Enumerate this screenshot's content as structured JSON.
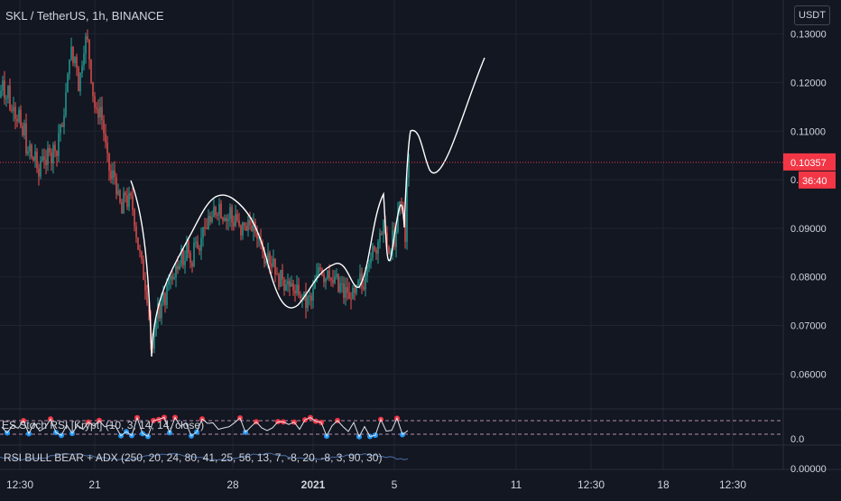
{
  "header": {
    "title": "SKL / TetherUS, 1h, BINANCE",
    "currency_button": "USDT"
  },
  "price_scale": {
    "ticks": [
      "0.06000",
      "0.07000",
      "0.08000",
      "0.09000",
      "0.10000",
      "0.11000",
      "0.12000",
      "0.13000"
    ],
    "last_price": "0.10357",
    "countdown": "36:40",
    "last_price_color": "#f23645"
  },
  "indicators": [
    {
      "label": "ES Stoch RSI [Krypt] (10, 3, 14, 14, close)",
      "scale_label": "0.0"
    },
    {
      "label": "RSI BULL BEAR + ADX (250, 20, 24, 80, 41, 25, 56, 13, 7, -8, 20, -8, 3, 90, 30)",
      "scale_label": "0.00000"
    }
  ],
  "time_axis": [
    "12:30",
    "21",
    "28",
    "2021",
    "5",
    "11",
    "12:30",
    "18",
    "12:30"
  ],
  "colors": {
    "background": "#131722",
    "up": "#26a69a",
    "down": "#ef5350",
    "drawing": "#ffffff",
    "text": "#d1d4dc"
  },
  "chart_data": {
    "type": "candlestick",
    "symbol": "SKL / TetherUS",
    "interval": "1h",
    "exchange": "BINANCE",
    "ylim": [
      0.053,
      0.137
    ],
    "close_path": [
      [
        0,
        0.117
      ],
      [
        3,
        0.121
      ],
      [
        6,
        0.116
      ],
      [
        9,
        0.119
      ],
      [
        12,
        0.113
      ],
      [
        15,
        0.116
      ],
      [
        18,
        0.112
      ],
      [
        21,
        0.114
      ],
      [
        24,
        0.108
      ],
      [
        27,
        0.111
      ],
      [
        30,
        0.104
      ],
      [
        33,
        0.107
      ],
      [
        36,
        0.103
      ],
      [
        39,
        0.106
      ],
      [
        42,
        0.099
      ],
      [
        45,
        0.104
      ],
      [
        48,
        0.106
      ],
      [
        51,
        0.102
      ],
      [
        54,
        0.108
      ],
      [
        57,
        0.104
      ],
      [
        60,
        0.108
      ],
      [
        63,
        0.105
      ],
      [
        66,
        0.112
      ],
      [
        69,
        0.11
      ],
      [
        72,
        0.116
      ],
      [
        75,
        0.121
      ],
      [
        78,
        0.128
      ],
      [
        81,
        0.124
      ],
      [
        84,
        0.126
      ],
      [
        87,
        0.119
      ],
      [
        90,
        0.123
      ],
      [
        93,
        0.127
      ],
      [
        96,
        0.13
      ],
      [
        99,
        0.125
      ],
      [
        102,
        0.119
      ],
      [
        105,
        0.115
      ],
      [
        108,
        0.113
      ],
      [
        111,
        0.115
      ],
      [
        114,
        0.111
      ],
      [
        117,
        0.107
      ],
      [
        120,
        0.103
      ],
      [
        123,
        0.1
      ],
      [
        126,
        0.102
      ],
      [
        129,
        0.098
      ],
      [
        132,
        0.096
      ],
      [
        135,
        0.093
      ],
      [
        138,
        0.098
      ],
      [
        141,
        0.095
      ],
      [
        144,
        0.097
      ],
      [
        147,
        0.094
      ],
      [
        150,
        0.09
      ],
      [
        153,
        0.086
      ],
      [
        156,
        0.084
      ],
      [
        159,
        0.08
      ],
      [
        162,
        0.077
      ],
      [
        165,
        0.073
      ],
      [
        168,
        0.063
      ],
      [
        171,
        0.067
      ],
      [
        174,
        0.075
      ],
      [
        177,
        0.072
      ],
      [
        180,
        0.077
      ],
      [
        183,
        0.074
      ],
      [
        186,
        0.079
      ],
      [
        189,
        0.081
      ],
      [
        192,
        0.078
      ],
      [
        195,
        0.083
      ],
      [
        198,
        0.08
      ],
      [
        201,
        0.085
      ],
      [
        204,
        0.082
      ],
      [
        207,
        0.087
      ],
      [
        210,
        0.084
      ],
      [
        213,
        0.082
      ],
      [
        216,
        0.089
      ],
      [
        219,
        0.087
      ],
      [
        222,
        0.086
      ],
      [
        225,
        0.091
      ],
      [
        228,
        0.088
      ],
      [
        231,
        0.093
      ],
      [
        234,
        0.09
      ],
      [
        237,
        0.094
      ],
      [
        240,
        0.093
      ],
      [
        243,
        0.095
      ],
      [
        246,
        0.092
      ],
      [
        249,
        0.093
      ],
      [
        252,
        0.091
      ],
      [
        255,
        0.094
      ],
      [
        258,
        0.09
      ],
      [
        261,
        0.093
      ],
      [
        264,
        0.091
      ],
      [
        267,
        0.088
      ],
      [
        270,
        0.092
      ],
      [
        273,
        0.089
      ],
      [
        276,
        0.093
      ],
      [
        279,
        0.089
      ],
      [
        282,
        0.091
      ],
      [
        285,
        0.087
      ],
      [
        288,
        0.089
      ],
      [
        291,
        0.085
      ],
      [
        294,
        0.083
      ],
      [
        297,
        0.086
      ],
      [
        300,
        0.082
      ],
      [
        303,
        0.084
      ],
      [
        306,
        0.08
      ],
      [
        309,
        0.079
      ],
      [
        312,
        0.081
      ],
      [
        315,
        0.078
      ],
      [
        318,
        0.08
      ],
      [
        321,
        0.077
      ],
      [
        324,
        0.079
      ],
      [
        327,
        0.076
      ],
      [
        330,
        0.078
      ],
      [
        333,
        0.075
      ],
      [
        336,
        0.077
      ],
      [
        339,
        0.074
      ],
      [
        342,
        0.076
      ],
      [
        345,
        0.075
      ],
      [
        348,
        0.078
      ],
      [
        351,
        0.08
      ],
      [
        354,
        0.083
      ],
      [
        357,
        0.081
      ],
      [
        360,
        0.079
      ],
      [
        363,
        0.082
      ],
      [
        366,
        0.08
      ],
      [
        369,
        0.078
      ],
      [
        372,
        0.081
      ],
      [
        375,
        0.077
      ],
      [
        378,
        0.079
      ],
      [
        381,
        0.076
      ],
      [
        384,
        0.078
      ],
      [
        387,
        0.075
      ],
      [
        390,
        0.077
      ],
      [
        393,
        0.076
      ],
      [
        396,
        0.078
      ],
      [
        399,
        0.08
      ],
      [
        402,
        0.077
      ],
      [
        405,
        0.081
      ],
      [
        408,
        0.084
      ],
      [
        411,
        0.083
      ],
      [
        414,
        0.087
      ],
      [
        417,
        0.085
      ],
      [
        420,
        0.09
      ],
      [
        423,
        0.088
      ],
      [
        426,
        0.092
      ],
      [
        429,
        0.086
      ],
      [
        432,
        0.083
      ],
      [
        435,
        0.089
      ],
      [
        438,
        0.086
      ],
      [
        441,
        0.093
      ],
      [
        444,
        0.096
      ],
      [
        447,
        0.092
      ],
      [
        449,
        0.088
      ],
      [
        452,
        0.106
      ],
      [
        454,
        0.1035
      ]
    ]
  }
}
